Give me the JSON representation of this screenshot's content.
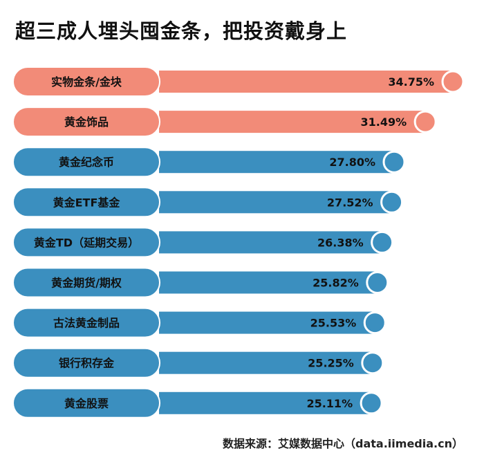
{
  "title": "超三成人埋头囤金条，把投资戴身上",
  "source": "数据来源：艾媒数据中心（data.iimedia.cn）",
  "colors": {
    "highlight": "#f28b78",
    "normal": "#3b8fbf",
    "text": "#111111"
  },
  "chart_data": {
    "type": "bar",
    "orientation": "horizontal",
    "categories": [
      "实物金条/金块",
      "黄金饰品",
      "黄金纪念币",
      "黄金ETF基金",
      "黄金TD（延期交易）",
      "黄金期货/期权",
      "古法黄金制品",
      "银行积存金",
      "黄金股票"
    ],
    "values": [
      34.75,
      31.49,
      27.8,
      27.52,
      26.38,
      25.82,
      25.53,
      25.25,
      25.11
    ],
    "labels": [
      "34.75%",
      "31.49%",
      "27.80%",
      "27.52%",
      "26.38%",
      "25.82%",
      "25.53%",
      "25.25%",
      "25.11%"
    ],
    "unit": "%",
    "highlighted": [
      0,
      1
    ],
    "xlim": [
      0,
      36
    ]
  }
}
